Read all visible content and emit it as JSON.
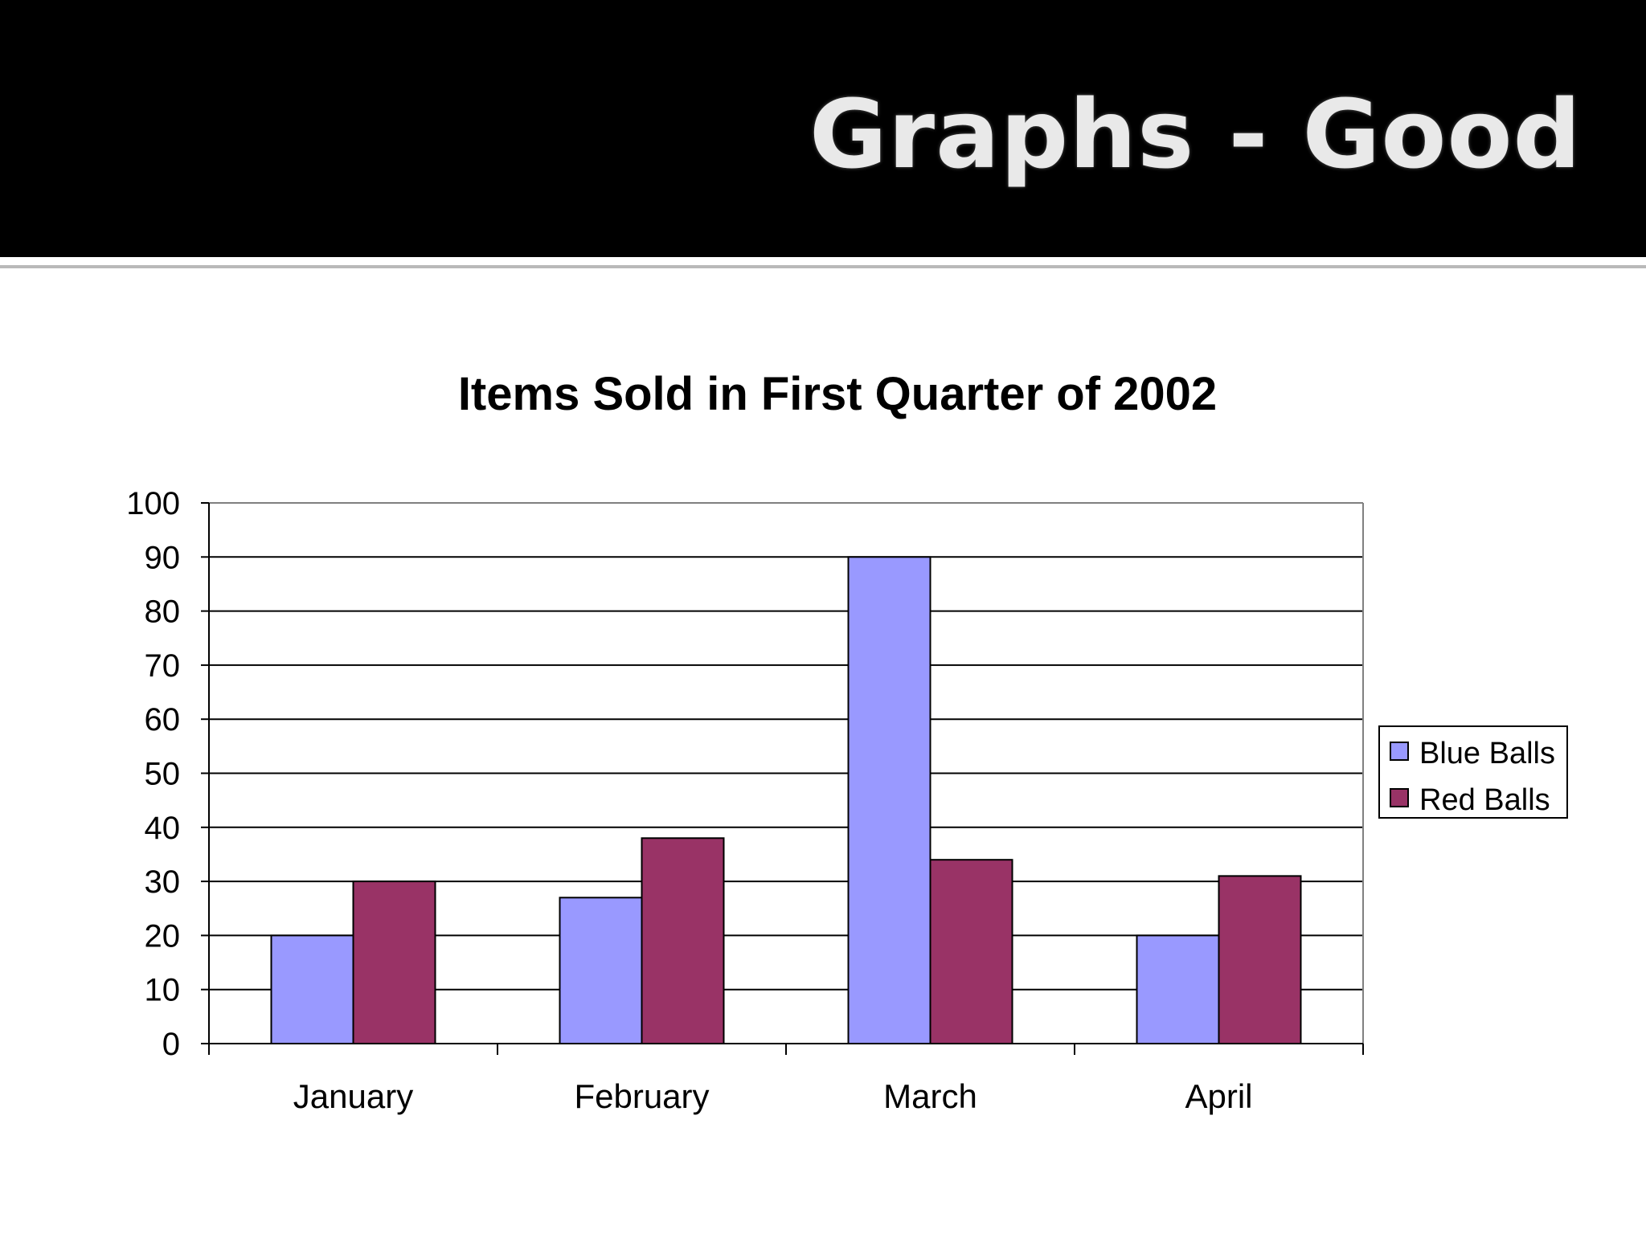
{
  "slide": {
    "title": "Graphs - Good",
    "header_color": "#000000",
    "background_color": "#ffffff"
  },
  "chart_data": {
    "type": "bar",
    "title": "Items Sold in First Quarter of 2002",
    "xlabel": "",
    "ylabel": "",
    "categories": [
      "January",
      "February",
      "March",
      "April"
    ],
    "series": [
      {
        "name": "Blue Balls",
        "values": [
          20,
          27,
          90,
          20
        ],
        "color": "#9999ff"
      },
      {
        "name": "Red Balls",
        "values": [
          30,
          38,
          34,
          31
        ],
        "color": "#993366"
      }
    ],
    "ylim": [
      0,
      100
    ],
    "yticks": [
      0,
      10,
      20,
      30,
      40,
      50,
      60,
      70,
      80,
      90,
      100
    ],
    "grid": true,
    "legend_position": "right"
  }
}
